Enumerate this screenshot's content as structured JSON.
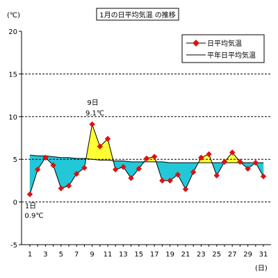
{
  "chart_data": {
    "type": "line",
    "title": "1月の日平均気温 の推移",
    "y_unit": "(℃)",
    "x_unit": "(日)",
    "ylim": [
      -5,
      20
    ],
    "yticks": [
      -5,
      0,
      5,
      10,
      15,
      20
    ],
    "grid_dashed_at": [
      0,
      5,
      10,
      15
    ],
    "xlim": [
      1,
      31
    ],
    "xticks": [
      1,
      3,
      5,
      7,
      9,
      11,
      13,
      15,
      17,
      19,
      21,
      23,
      25,
      27,
      29,
      31
    ],
    "x": [
      1,
      2,
      3,
      4,
      5,
      6,
      7,
      8,
      9,
      10,
      11,
      12,
      13,
      14,
      15,
      16,
      17,
      18,
      19,
      20,
      21,
      22,
      23,
      24,
      25,
      26,
      27,
      28,
      29,
      30,
      31
    ],
    "legend_position": "top-right",
    "series": [
      {
        "name": "日平均気温",
        "values": [
          0.9,
          3.8,
          5.2,
          4.3,
          1.6,
          1.9,
          3.3,
          4.0,
          9.1,
          6.5,
          7.4,
          3.8,
          4.1,
          2.8,
          3.9,
          5.1,
          5.3,
          2.5,
          2.5,
          3.2,
          1.5,
          3.5,
          5.2,
          5.6,
          3.1,
          4.7,
          5.8,
          4.7,
          3.9,
          4.6,
          3.0
        ]
      },
      {
        "name": "平年日平均気温",
        "values": [
          5.5,
          5.4,
          5.4,
          5.3,
          5.2,
          5.2,
          5.1,
          5.1,
          5.0,
          4.9,
          4.9,
          4.8,
          4.8,
          4.7,
          4.7,
          4.7,
          4.7,
          4.7,
          4.6,
          4.6,
          4.6,
          4.6,
          4.6,
          4.6,
          4.6,
          4.6,
          4.6,
          4.6,
          4.6,
          4.6,
          4.6
        ]
      }
    ],
    "annotations": [
      {
        "day_label": "9日",
        "value_label": "9.1℃",
        "x": 9,
        "y": 9.1
      },
      {
        "day_label": "1日",
        "value_label": "0.9℃",
        "x": 1,
        "y": 0.9
      }
    ],
    "colors": {
      "above": "#ffff33",
      "below": "#22c8d8",
      "marker": "#dd1111",
      "line": "#000000",
      "grid": "#000000"
    }
  }
}
